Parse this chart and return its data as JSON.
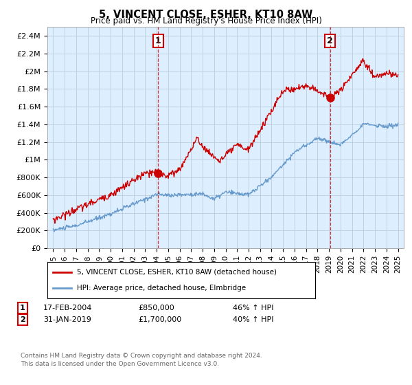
{
  "title": "5, VINCENT CLOSE, ESHER, KT10 8AW",
  "subtitle": "Price paid vs. HM Land Registry's House Price Index (HPI)",
  "legend_line1": "5, VINCENT CLOSE, ESHER, KT10 8AW (detached house)",
  "legend_line2": "HPI: Average price, detached house, Elmbridge",
  "annotation1_label": "1",
  "annotation1_date": "17-FEB-2004",
  "annotation1_price": "£850,000",
  "annotation1_hpi": "46% ↑ HPI",
  "annotation1_year": 2004.12,
  "annotation1_value": 850000,
  "annotation2_label": "2",
  "annotation2_date": "31-JAN-2019",
  "annotation2_price": "£1,700,000",
  "annotation2_hpi": "40% ↑ HPI",
  "annotation2_year": 2019.08,
  "annotation2_value": 1700000,
  "red_line_color": "#cc0000",
  "blue_line_color": "#6699cc",
  "chart_bg_color": "#ddeeff",
  "grid_color": "#bbccdd",
  "background_color": "#ffffff",
  "ylim": [
    0,
    2500000
  ],
  "yticks": [
    0,
    200000,
    400000,
    600000,
    800000,
    1000000,
    1200000,
    1400000,
    1600000,
    1800000,
    2000000,
    2200000,
    2400000
  ],
  "ylabel_texts": [
    "£0",
    "£200K",
    "£400K",
    "£600K",
    "£800K",
    "£1M",
    "£1.2M",
    "£1.4M",
    "£1.6M",
    "£1.8M",
    "£2M",
    "£2.2M",
    "£2.4M"
  ],
  "footer_line1": "Contains HM Land Registry data © Crown copyright and database right 2024.",
  "footer_line2": "This data is licensed under the Open Government Licence v3.0.",
  "xlim_left": 1994.5,
  "xlim_right": 2025.5
}
